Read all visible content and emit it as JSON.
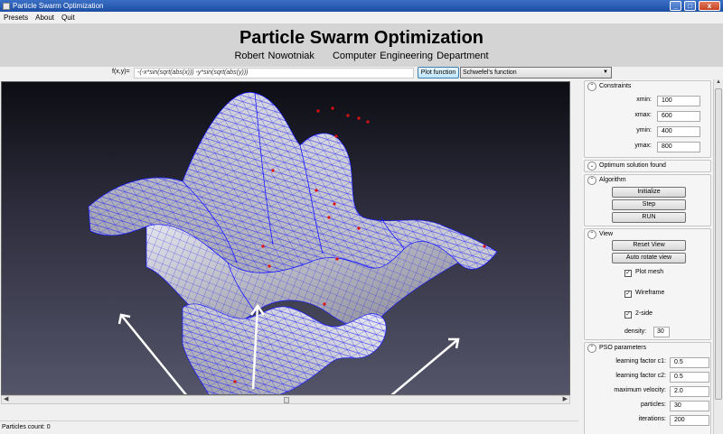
{
  "window": {
    "title": "Particle Swarm Optimization",
    "min_glyph": "_",
    "max_glyph": "□",
    "close_glyph": "x"
  },
  "menu": [
    "Presets",
    "About",
    "Quit"
  ],
  "header": {
    "title": "Particle Swarm Optimization",
    "author": "Robert Nowotniak",
    "department": "Computer Engineering Department"
  },
  "function_bar": {
    "label": "f(x,y)=",
    "expression": "-(-x*sin(sqrt(abs(x))) -y*sin(sqrt(abs(y)))",
    "plot_button": "Plot function",
    "preset_selected": "Schwefel's function",
    "dropdown_arrow": "▼"
  },
  "scroll": {
    "left_arrow": "◀",
    "right_arrow": "▶",
    "up_arrow": "▲"
  },
  "status": {
    "text": "Particles count: 0"
  },
  "constraints": {
    "title": "Constraints",
    "chevron": "⌃",
    "fields": [
      {
        "label": "xmin:",
        "value": "100"
      },
      {
        "label": "xmax:",
        "value": "600"
      },
      {
        "label": "ymin:",
        "value": "400"
      },
      {
        "label": "ymax:",
        "value": "800"
      }
    ]
  },
  "optimum": {
    "title": "Optimum solution found",
    "chevron": "⌄"
  },
  "algorithm": {
    "title": "Algorithm",
    "chevron": "⌃",
    "buttons": [
      "Initialize",
      "Step",
      "RUN"
    ]
  },
  "view": {
    "title": "View",
    "chevron": "⌃",
    "buttons": [
      "Reset View",
      "Auto rotate view"
    ],
    "checks": [
      {
        "label": "Plot mesh",
        "checked": true,
        "mark": "✓"
      },
      {
        "label": "Wireframe",
        "checked": true,
        "mark": "✓"
      },
      {
        "label": "2-side",
        "checked": true,
        "mark": "✓"
      }
    ],
    "density_label": "density:",
    "density_value": "30"
  },
  "pso": {
    "title": "PSO parameters",
    "chevron": "⌃",
    "fields": [
      {
        "label": "learning factor c1:",
        "value": "0.5"
      },
      {
        "label": "learning factor c2:",
        "value": "0.5"
      },
      {
        "label": "maximum velocity:",
        "value": "2.0"
      },
      {
        "label": "particles:",
        "value": "30"
      },
      {
        "label": "iterations:",
        "value": "200"
      }
    ]
  },
  "colors": {
    "mesh_line": "#1a1aff",
    "surface_light": "#e4e4ec",
    "surface_dark": "#8a8a96",
    "particle": "#e01010",
    "axis": "#ffffff",
    "viewport_top": "#0d0d14",
    "viewport_bottom": "#55556a"
  }
}
